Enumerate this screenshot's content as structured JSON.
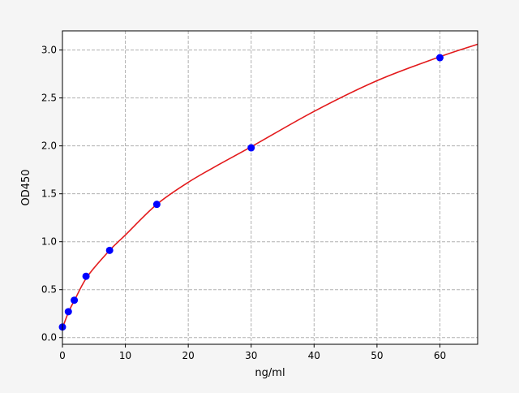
{
  "chart_data": {
    "type": "scatter",
    "title": "",
    "xlabel": "ng/ml",
    "ylabel": "OD450",
    "xlim": [
      0,
      66
    ],
    "ylim": [
      -0.07,
      3.2
    ],
    "xticks": [
      0,
      10,
      20,
      30,
      40,
      50,
      60
    ],
    "yticks": [
      0.0,
      0.5,
      1.0,
      1.5,
      2.0,
      2.5,
      3.0
    ],
    "xtick_labels": [
      "0",
      "10",
      "20",
      "30",
      "40",
      "50",
      "60"
    ],
    "ytick_labels": [
      "0.0",
      "0.5",
      "1.0",
      "1.5",
      "2.0",
      "2.5",
      "3.0"
    ],
    "grid": true,
    "points": {
      "x": [
        0,
        0.94,
        1.88,
        3.75,
        7.5,
        15,
        30,
        60
      ],
      "y": [
        0.11,
        0.27,
        0.39,
        0.64,
        0.91,
        1.39,
        1.98,
        2.92
      ],
      "color": "#0000ff"
    },
    "fit_curve": {
      "x": [
        0,
        1,
        2,
        4,
        7.5,
        10,
        15,
        20,
        25,
        30,
        40,
        50,
        60,
        66
      ],
      "y": [
        0.1,
        0.27,
        0.4,
        0.64,
        0.91,
        1.07,
        1.39,
        1.62,
        1.81,
        1.99,
        2.36,
        2.68,
        2.93,
        3.06
      ],
      "color": "#e31a1c"
    }
  }
}
